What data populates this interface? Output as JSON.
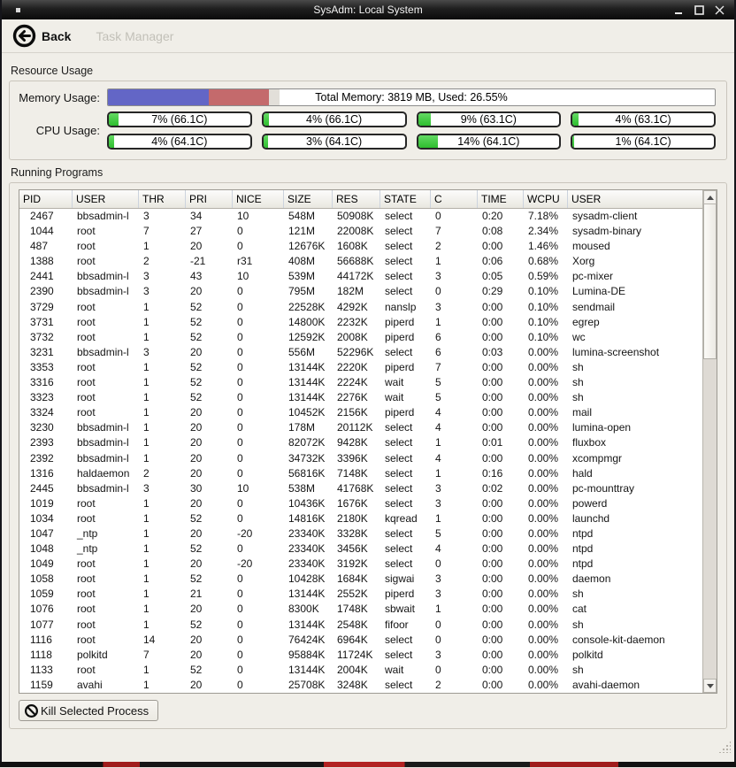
{
  "window": {
    "title": "SysAdm: Local System"
  },
  "toolbar": {
    "back_label": "Back",
    "breadcrumb": "Task Manager"
  },
  "resource_usage": {
    "section_title": "Resource Usage",
    "memory": {
      "label": "Memory Usage:",
      "text": "Total Memory: 3819 MB,  Used: 26.55%",
      "segments": [
        {
          "name": "active",
          "color": "#6366c6",
          "pct": 16.6
        },
        {
          "name": "wired",
          "color": "#c46a6c",
          "pct": 9.9
        },
        {
          "name": "buffers",
          "color": "#e2dfd9",
          "pct": 1.8
        }
      ]
    },
    "cpu": {
      "label": "CPU Usage:",
      "cores": [
        {
          "pct": 7,
          "text": "7% (66.1C)"
        },
        {
          "pct": 4,
          "text": "4% (66.1C)"
        },
        {
          "pct": 9,
          "text": "9% (63.1C)"
        },
        {
          "pct": 4,
          "text": "4% (63.1C)"
        },
        {
          "pct": 4,
          "text": "4% (64.1C)"
        },
        {
          "pct": 3,
          "text": "3% (64.1C)"
        },
        {
          "pct": 14,
          "text": "14% (64.1C)"
        },
        {
          "pct": 1,
          "text": "1% (64.1C)"
        }
      ]
    }
  },
  "running_programs": {
    "section_title": "Running Programs",
    "columns": [
      "PID",
      "USER",
      "THR",
      "PRI",
      "NICE",
      "SIZE",
      "RES",
      "STATE",
      "C",
      "TIME",
      "WCPU",
      "USER"
    ],
    "rows": [
      [
        2467,
        "bbsadmin-l",
        3,
        34,
        10,
        "548M",
        "50908K",
        "select",
        0,
        "0:20",
        "7.18%",
        "sysadm-client"
      ],
      [
        1044,
        "root",
        7,
        27,
        0,
        "121M",
        "22008K",
        "select",
        7,
        "0:08",
        "2.34%",
        "sysadm-binary"
      ],
      [
        487,
        "root",
        1,
        20,
        0,
        "12676K",
        "1608K",
        "select",
        2,
        "0:00",
        "1.46%",
        "moused"
      ],
      [
        1388,
        "root",
        2,
        -21,
        "r31",
        "408M",
        "56688K",
        "select",
        1,
        "0:06",
        "0.68%",
        "Xorg"
      ],
      [
        2441,
        "bbsadmin-l",
        3,
        43,
        10,
        "539M",
        "44172K",
        "select",
        3,
        "0:05",
        "0.59%",
        "pc-mixer"
      ],
      [
        2390,
        "bbsadmin-l",
        3,
        20,
        0,
        "795M",
        "182M",
        "select",
        0,
        "0:29",
        "0.10%",
        "Lumina-DE"
      ],
      [
        3729,
        "root",
        1,
        52,
        0,
        "22528K",
        "4292K",
        "nanslp",
        3,
        "0:00",
        "0.10%",
        "sendmail"
      ],
      [
        3731,
        "root",
        1,
        52,
        0,
        "14800K",
        "2232K",
        "piperd",
        1,
        "0:00",
        "0.10%",
        "egrep"
      ],
      [
        3732,
        "root",
        1,
        52,
        0,
        "12592K",
        "2008K",
        "piperd",
        6,
        "0:00",
        "0.10%",
        "wc"
      ],
      [
        3231,
        "bbsadmin-l",
        3,
        20,
        0,
        "556M",
        "52296K",
        "select",
        6,
        "0:03",
        "0.00%",
        "lumina-screenshot"
      ],
      [
        3353,
        "root",
        1,
        52,
        0,
        "13144K",
        "2220K",
        "piperd",
        7,
        "0:00",
        "0.00%",
        "sh"
      ],
      [
        3316,
        "root",
        1,
        52,
        0,
        "13144K",
        "2224K",
        "wait",
        5,
        "0:00",
        "0.00%",
        "sh"
      ],
      [
        3323,
        "root",
        1,
        52,
        0,
        "13144K",
        "2276K",
        "wait",
        5,
        "0:00",
        "0.00%",
        "sh"
      ],
      [
        3324,
        "root",
        1,
        20,
        0,
        "10452K",
        "2156K",
        "piperd",
        4,
        "0:00",
        "0.00%",
        "mail"
      ],
      [
        3230,
        "bbsadmin-l",
        1,
        20,
        0,
        "178M",
        "20112K",
        "select",
        4,
        "0:00",
        "0.00%",
        "lumina-open"
      ],
      [
        2393,
        "bbsadmin-l",
        1,
        20,
        0,
        "82072K",
        "9428K",
        "select",
        1,
        "0:01",
        "0.00%",
        "fluxbox"
      ],
      [
        2392,
        "bbsadmin-l",
        1,
        20,
        0,
        "34732K",
        "3396K",
        "select",
        4,
        "0:00",
        "0.00%",
        "xcompmgr"
      ],
      [
        1316,
        "haldaemon",
        2,
        20,
        0,
        "56816K",
        "7148K",
        "select",
        1,
        "0:16",
        "0.00%",
        "hald"
      ],
      [
        2445,
        "bbsadmin-l",
        3,
        30,
        10,
        "538M",
        "41768K",
        "select",
        3,
        "0:02",
        "0.00%",
        "pc-mounttray"
      ],
      [
        1019,
        "root",
        1,
        20,
        0,
        "10436K",
        "1676K",
        "select",
        3,
        "0:00",
        "0.00%",
        "powerd"
      ],
      [
        1034,
        "root",
        1,
        52,
        0,
        "14816K",
        "2180K",
        "kqread",
        1,
        "0:00",
        "0.00%",
        "launchd"
      ],
      [
        1047,
        "_ntp",
        1,
        20,
        -20,
        "23340K",
        "3328K",
        "select",
        5,
        "0:00",
        "0.00%",
        "ntpd"
      ],
      [
        1048,
        "_ntp",
        1,
        52,
        0,
        "23340K",
        "3456K",
        "select",
        4,
        "0:00",
        "0.00%",
        "ntpd"
      ],
      [
        1049,
        "root",
        1,
        20,
        -20,
        "23340K",
        "3192K",
        "select",
        0,
        "0:00",
        "0.00%",
        "ntpd"
      ],
      [
        1058,
        "root",
        1,
        52,
        0,
        "10428K",
        "1684K",
        "sigwai",
        3,
        "0:00",
        "0.00%",
        "daemon"
      ],
      [
        1059,
        "root",
        1,
        21,
        0,
        "13144K",
        "2552K",
        "piperd",
        3,
        "0:00",
        "0.00%",
        "sh"
      ],
      [
        1076,
        "root",
        1,
        20,
        0,
        "8300K",
        "1748K",
        "sbwait",
        1,
        "0:00",
        "0.00%",
        "cat"
      ],
      [
        1077,
        "root",
        1,
        52,
        0,
        "13144K",
        "2548K",
        "fifoor",
        0,
        "0:00",
        "0.00%",
        "sh"
      ],
      [
        1116,
        "root",
        14,
        20,
        0,
        "76424K",
        "6964K",
        "select",
        0,
        "0:00",
        "0.00%",
        "console-kit-daemon"
      ],
      [
        1118,
        "polkitd",
        7,
        20,
        0,
        "95884K",
        "11724K",
        "select",
        3,
        "0:00",
        "0.00%",
        "polkitd"
      ],
      [
        1133,
        "root",
        1,
        52,
        0,
        "13144K",
        "2004K",
        "wait",
        0,
        "0:00",
        "0.00%",
        "sh"
      ],
      [
        1159,
        "avahi",
        1,
        20,
        0,
        "25708K",
        "3248K",
        "select",
        2,
        "0:00",
        "0.00%",
        "avahi-daemon"
      ]
    ],
    "kill_button_label": "Kill Selected Process"
  }
}
